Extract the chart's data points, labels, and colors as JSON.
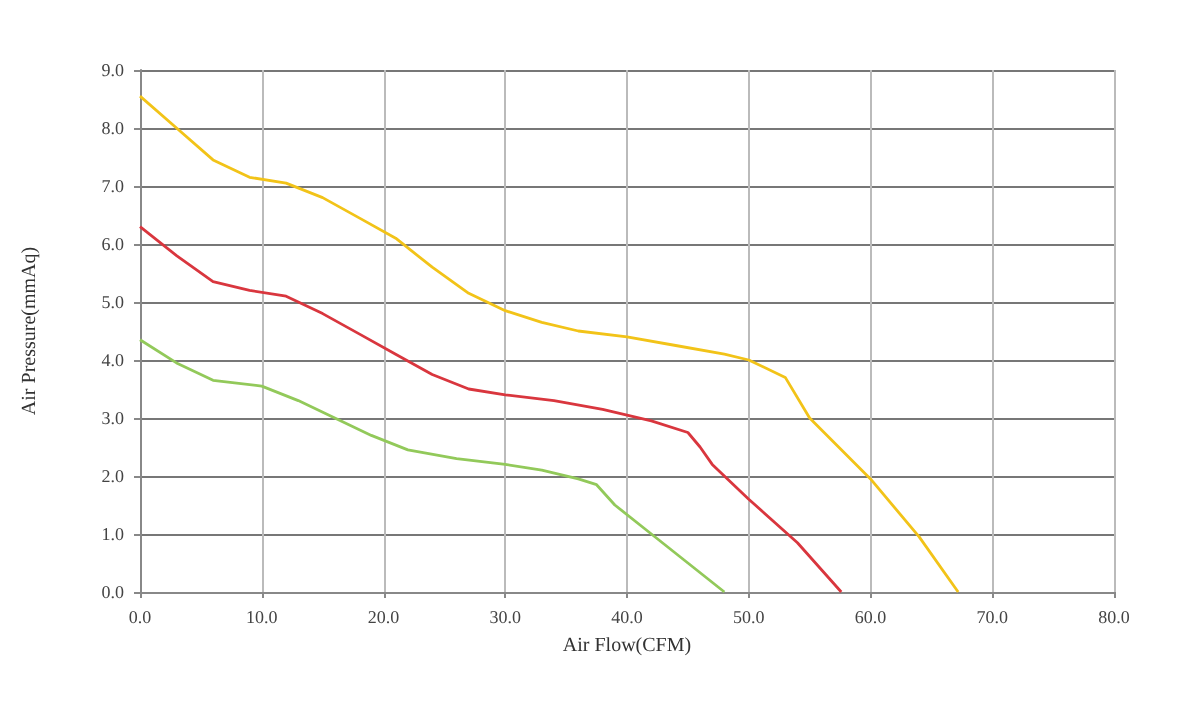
{
  "chart_data": {
    "type": "line",
    "xlabel": "Air Flow(CFM)",
    "ylabel": "Air Pressure(mmAq)",
    "grid": true,
    "marker": "none",
    "line_style": "solid",
    "xlim": [
      0,
      80
    ],
    "ylim": [
      0,
      9
    ],
    "xticks": [
      {
        "value": 0,
        "label": "0.0"
      },
      {
        "value": 10,
        "label": "10.0"
      },
      {
        "value": 20,
        "label": "20.0"
      },
      {
        "value": 30,
        "label": "30.0"
      },
      {
        "value": 40,
        "label": "40.0"
      },
      {
        "value": 50,
        "label": "50.0"
      },
      {
        "value": 60,
        "label": "60.0"
      },
      {
        "value": 70,
        "label": "70.0"
      },
      {
        "value": 80,
        "label": "80.0"
      }
    ],
    "yticks": [
      {
        "value": 0,
        "label": "0.0"
      },
      {
        "value": 1,
        "label": "1.0"
      },
      {
        "value": 2,
        "label": "2.0"
      },
      {
        "value": 3,
        "label": "3.0"
      },
      {
        "value": 4,
        "label": "4.0"
      },
      {
        "value": 5,
        "label": "5.0"
      },
      {
        "value": 6,
        "label": "6.0"
      },
      {
        "value": 7,
        "label": "7.0"
      },
      {
        "value": 8,
        "label": "8.0"
      },
      {
        "value": 9,
        "label": "9.0"
      }
    ],
    "series": [
      {
        "color": "#f2c318",
        "x": [
          0,
          3,
          6,
          9,
          12,
          15,
          18,
          21,
          24,
          27,
          30,
          33,
          36,
          40,
          44,
          48,
          50,
          53,
          55,
          60,
          64,
          67.2
        ],
        "values": [
          8.55,
          8.0,
          7.45,
          7.15,
          7.05,
          6.8,
          6.45,
          6.1,
          5.6,
          5.15,
          4.85,
          4.65,
          4.5,
          4.4,
          4.25,
          4.1,
          4.0,
          3.7,
          3.0,
          1.95,
          0.95,
          0
        ]
      },
      {
        "color": "#d9363e",
        "x": [
          0,
          3,
          6,
          9,
          12,
          15,
          18,
          21,
          24,
          27,
          30,
          34,
          38,
          42,
          45,
          46,
          47,
          50,
          54,
          57.6
        ],
        "values": [
          6.3,
          5.8,
          5.35,
          5.2,
          5.1,
          4.8,
          4.45,
          4.1,
          3.75,
          3.5,
          3.4,
          3.3,
          3.15,
          2.95,
          2.75,
          2.5,
          2.2,
          1.6,
          0.85,
          0
        ]
      },
      {
        "color": "#92c95a",
        "x": [
          0,
          3,
          6,
          10,
          13,
          16,
          19,
          22,
          26,
          30,
          33,
          36,
          37.5,
          39,
          42,
          45,
          48
        ],
        "values": [
          4.35,
          3.95,
          3.65,
          3.55,
          3.3,
          3.0,
          2.7,
          2.45,
          2.3,
          2.2,
          2.1,
          1.95,
          1.85,
          1.5,
          1.0,
          0.5,
          0
        ]
      }
    ]
  }
}
